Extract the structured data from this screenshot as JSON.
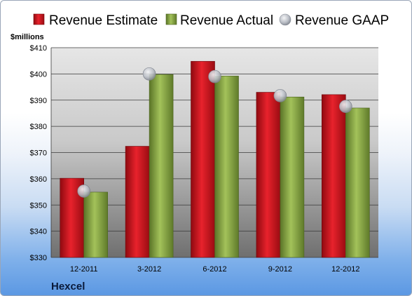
{
  "chart_data": {
    "type": "bar",
    "ylabel": "$millions",
    "company": "Hexcel",
    "categories": [
      "12-2011",
      "3-2012",
      "6-2012",
      "9-2012",
      "12-2012"
    ],
    "series": [
      {
        "name": "Revenue Estimate",
        "type": "bar",
        "color": "#c8101a",
        "values": [
          360.2,
          372.4,
          404.8,
          393.0,
          392.1
        ]
      },
      {
        "name": "Revenue Actual",
        "type": "bar",
        "color": "#7d9a3e",
        "values": [
          354.9,
          399.8,
          399.2,
          391.2,
          387.0
        ]
      },
      {
        "name": "Revenue GAAP",
        "type": "marker",
        "color": "#b8bcc4",
        "values": [
          355.3,
          400.0,
          399.0,
          391.7,
          387.6
        ]
      }
    ],
    "ylim": [
      330,
      410
    ],
    "yticks": [
      330,
      340,
      350,
      360,
      370,
      380,
      390,
      400,
      410
    ],
    "ytick_labels": [
      "$330",
      "$340",
      "$350",
      "$360",
      "$370",
      "$380",
      "$390",
      "$400",
      "$410"
    ],
    "grid": true,
    "legend_position": "top"
  }
}
